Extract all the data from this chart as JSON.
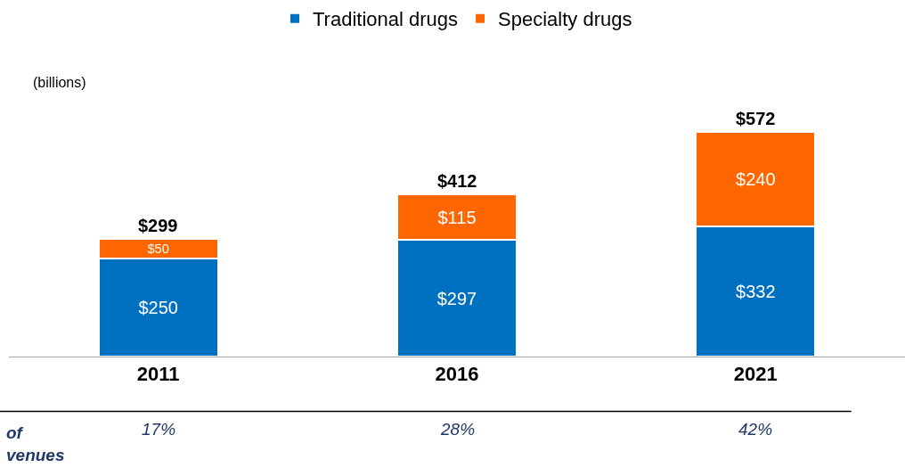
{
  "chart_data": {
    "type": "bar",
    "stacked": true,
    "ylabel": "(billions)",
    "categories": [
      "2011",
      "2016",
      "2021"
    ],
    "tick_labels": "x",
    "grid": false,
    "legend": "top",
    "series": [
      {
        "name": "Traditional drugs",
        "color": "#0070c0",
        "values": [
          250,
          297,
          332
        ],
        "value_labels": [
          "$250",
          "$297",
          "$332"
        ]
      },
      {
        "name": "Specialty drugs",
        "color": "#ff6600",
        "values": [
          50,
          115,
          240
        ],
        "value_labels": [
          "$50",
          "$115",
          "$240"
        ]
      }
    ],
    "totals": [
      "$299",
      "$412",
      "$572"
    ],
    "annotations": [
      "of\nvenues",
      "17%",
      "28%",
      "42%"
    ]
  }
}
